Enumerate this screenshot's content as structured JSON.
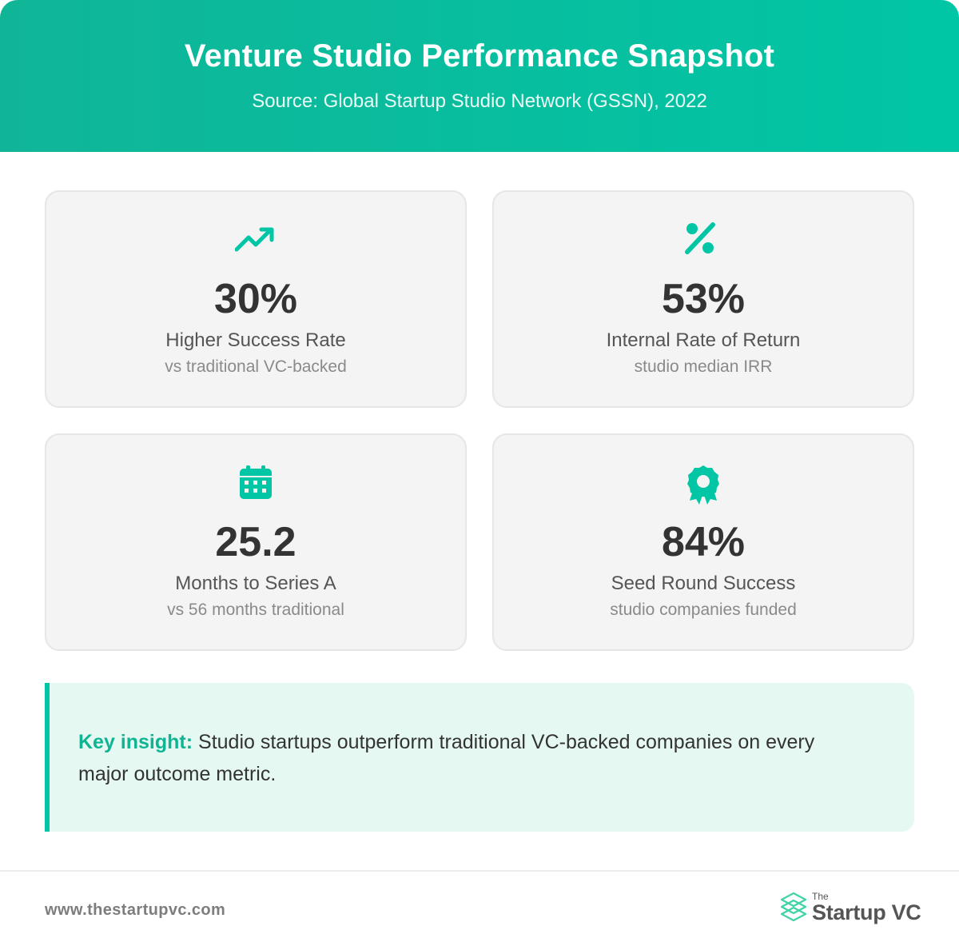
{
  "header": {
    "title": "Venture Studio Performance Snapshot",
    "subtitle": "Source: Global Startup Studio Network (GSSN), 2022"
  },
  "colors": {
    "accent": "#00c6a5",
    "accent_dark": "#10b597",
    "card_bg": "#f4f4f4",
    "insight_bg": "#e5f8f2",
    "text": "#333333"
  },
  "cards": [
    {
      "icon": "trending-up-icon",
      "value": "30%",
      "label": "Higher Success Rate",
      "sub": "vs traditional VC-backed"
    },
    {
      "icon": "percent-icon",
      "value": "53%",
      "label": "Internal Rate of Return",
      "sub": "studio median IRR"
    },
    {
      "icon": "calendar-icon",
      "value": "25.2",
      "label": "Months to Series A",
      "sub": "vs 56 months traditional"
    },
    {
      "icon": "award-icon",
      "value": "84%",
      "label": "Seed Round Success",
      "sub": "studio companies funded"
    }
  ],
  "insight": {
    "key": "Key insight:",
    "text": " Studio startups outperform traditional VC-backed companies on every major outcome metric."
  },
  "footer": {
    "url": "www.thestartupvc.com",
    "brand_the": "The",
    "brand_name": "Startup VC"
  }
}
